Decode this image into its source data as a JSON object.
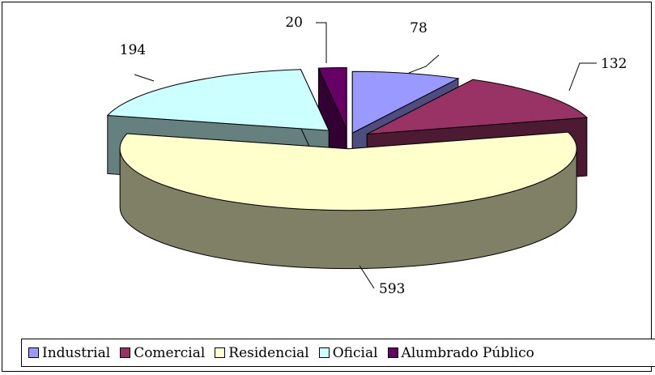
{
  "chart_data": {
    "type": "pie",
    "style": "3d-exploded",
    "categories": [
      "Industrial",
      "Comercial",
      "Residencial",
      "Oficial",
      "Alumbrado Público"
    ],
    "values": [
      78,
      132,
      593,
      194,
      20
    ],
    "colors": [
      "#9999ff",
      "#993366",
      "#ffffcc",
      "#ccffff",
      "#660066"
    ],
    "side_colors": [
      "#4d4d80",
      "#4d1a33",
      "#808066",
      "#668080",
      "#330033"
    ],
    "data_labels": [
      "78",
      "132",
      "593",
      "194",
      "20"
    ],
    "legend_position": "bottom"
  }
}
